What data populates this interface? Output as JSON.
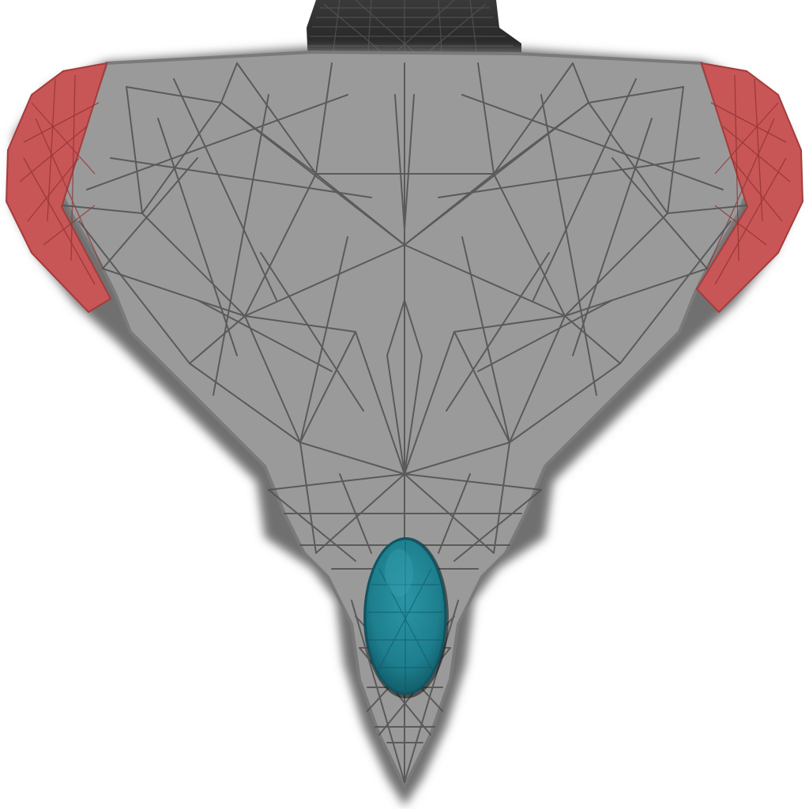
{
  "scene": {
    "background_color": "#ffffff",
    "object": "spaceship-texture-unwrap",
    "colors": {
      "hull": "#9a9a9a",
      "hull_rim": "#6f6f6f",
      "hull_edge": "#8a8a8a",
      "wireframe": "#505050",
      "wingtip": "#c85656",
      "wingtip_dark": "#a43c3c",
      "cockpit": "#1e7f8e",
      "cockpit_dark": "#0f5563",
      "engine": "#2a2a2a"
    }
  }
}
